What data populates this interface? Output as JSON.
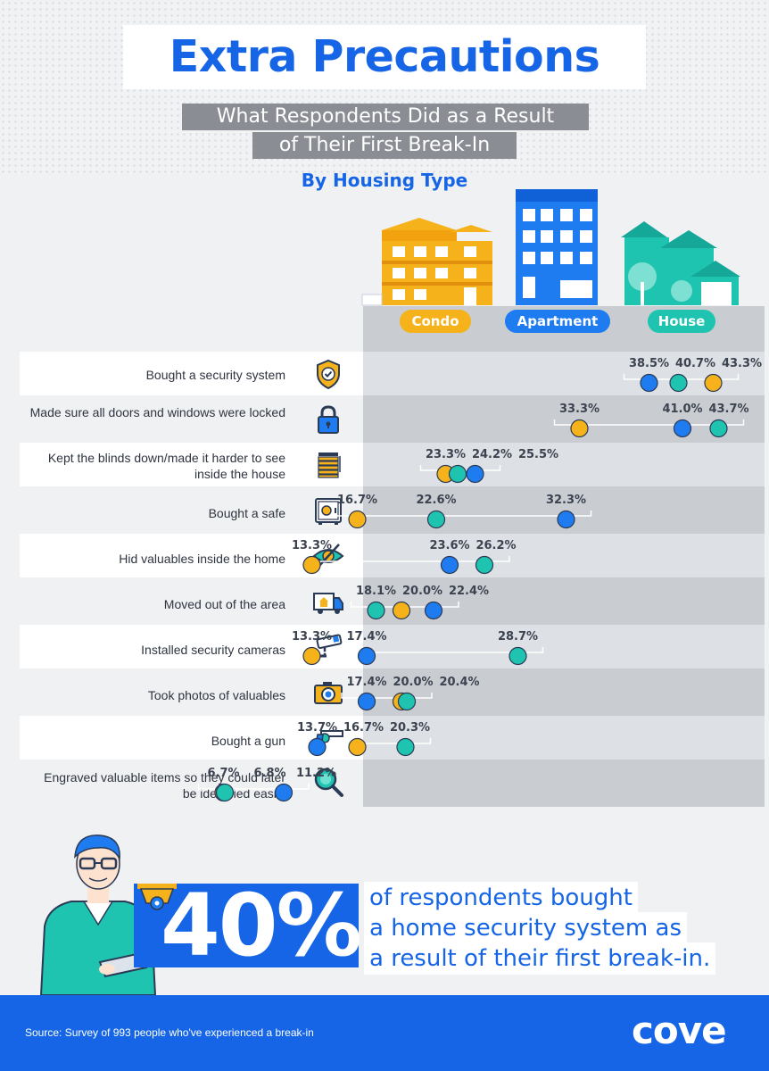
{
  "header": {
    "title": "Extra Precautions",
    "subtitle_line1": "What Respondents Did as a Result",
    "subtitle_line2": "of Their First Break-In",
    "group_label": "By Housing Type"
  },
  "legend": {
    "condo": "Condo",
    "apartment": "Apartment",
    "house": "House"
  },
  "colors": {
    "condo": "#f6b21b",
    "apartment": "#1e7bf0",
    "house": "#1ec4b0",
    "accent": "#1565e6"
  },
  "chart_data": {
    "type": "scatter",
    "x_unit": "percent",
    "series": [
      {
        "name": "Condo",
        "color": "#f6b21b"
      },
      {
        "name": "Apartment",
        "color": "#1e7bf0"
      },
      {
        "name": "House",
        "color": "#1ec4b0"
      }
    ],
    "categories": [
      {
        "label": "Bought a security system",
        "icon": "shield-check-icon",
        "values": {
          "Condo": 43.3,
          "Apartment": 38.5,
          "House": 40.7
        }
      },
      {
        "label": "Made sure all doors and windows were locked",
        "icon": "padlock-icon",
        "values": {
          "Condo": 33.3,
          "Apartment": 41.0,
          "House": 43.7
        }
      },
      {
        "label": "Kept the blinds down/made it harder to see inside the house",
        "icon": "blinds-icon",
        "values": {
          "Condo": 23.3,
          "Apartment": 25.5,
          "House": 24.2
        }
      },
      {
        "label": "Bought a safe",
        "icon": "safe-icon",
        "values": {
          "Condo": 16.7,
          "Apartment": 32.3,
          "House": 22.6
        }
      },
      {
        "label": "Hid valuables inside the home",
        "icon": "eye-slash-icon",
        "values": {
          "Condo": 13.3,
          "Apartment": 23.6,
          "House": 26.2
        }
      },
      {
        "label": "Moved out of the area",
        "icon": "moving-truck-icon",
        "values": {
          "Condo": 20.0,
          "Apartment": 22.4,
          "House": 18.1
        }
      },
      {
        "label": "Installed security cameras",
        "icon": "security-camera-icon",
        "values": {
          "Condo": 13.3,
          "Apartment": 17.4,
          "House": 28.7
        }
      },
      {
        "label": "Took photos of valuables",
        "icon": "camera-icon",
        "values": {
          "Condo": 20.0,
          "Apartment": 17.4,
          "House": 20.4
        }
      },
      {
        "label": "Bought a gun",
        "icon": "gun-icon",
        "values": {
          "Condo": 16.7,
          "Apartment": 13.7,
          "House": 20.3
        }
      },
      {
        "label": "Engraved valuable items so they could later be identified easily",
        "icon": "magnifier-icon",
        "values": {
          "Condo": 6.7,
          "Apartment": 11.2,
          "House": 6.8
        }
      }
    ]
  },
  "callout": {
    "stat": "40%",
    "line1": "of respondents bought",
    "line2": "a home security system as",
    "line3": "a result of their first break-in."
  },
  "footer": {
    "source": "Source: Survey of 993 people who've experienced a break-in",
    "logo": "cove"
  }
}
